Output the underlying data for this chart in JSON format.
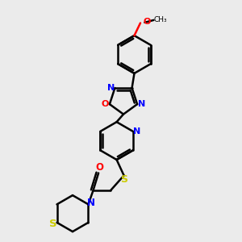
{
  "bg_color": "#ebebeb",
  "bond_color": "#000000",
  "N_color": "#0000ff",
  "O_color": "#ff0000",
  "S_color": "#cccc00",
  "lw": 1.8,
  "figsize": [
    3.0,
    3.0
  ],
  "dpi": 100,
  "xlim": [
    0,
    10
  ],
  "ylim": [
    0,
    10
  ]
}
